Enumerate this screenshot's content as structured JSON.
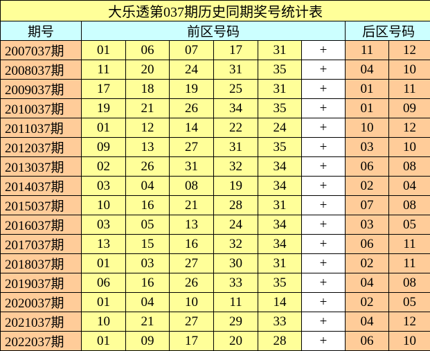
{
  "title": "大乐透第037期历史同期奖号统计表",
  "headers": {
    "period": "期号",
    "front": "前区号码",
    "back": "后区号码"
  },
  "separator": "+",
  "colors": {
    "title_bg": "#FFFF99",
    "header_bg": "#CCFFFF",
    "period_bg": "#FFCC99",
    "front_bg": "#FFFF99",
    "back_bg": "#FFCC99"
  },
  "rows": [
    {
      "period": "2007037期",
      "front": [
        "01",
        "06",
        "07",
        "17",
        "31"
      ],
      "back": [
        "11",
        "12"
      ]
    },
    {
      "period": "2008037期",
      "front": [
        "11",
        "20",
        "24",
        "31",
        "35"
      ],
      "back": [
        "04",
        "10"
      ]
    },
    {
      "period": "2009037期",
      "front": [
        "17",
        "18",
        "19",
        "25",
        "31"
      ],
      "back": [
        "01",
        "11"
      ]
    },
    {
      "period": "2010037期",
      "front": [
        "19",
        "21",
        "26",
        "34",
        "35"
      ],
      "back": [
        "01",
        "09"
      ]
    },
    {
      "period": "2011037期",
      "front": [
        "01",
        "12",
        "14",
        "22",
        "24"
      ],
      "back": [
        "10",
        "12"
      ]
    },
    {
      "period": "2012037期",
      "front": [
        "09",
        "13",
        "27",
        "31",
        "35"
      ],
      "back": [
        "03",
        "10"
      ]
    },
    {
      "period": "2013037期",
      "front": [
        "02",
        "26",
        "31",
        "32",
        "34"
      ],
      "back": [
        "06",
        "08"
      ]
    },
    {
      "period": "2014037期",
      "front": [
        "03",
        "04",
        "08",
        "19",
        "34"
      ],
      "back": [
        "02",
        "04"
      ]
    },
    {
      "period": "2015037期",
      "front": [
        "10",
        "16",
        "21",
        "28",
        "31"
      ],
      "back": [
        "07",
        "08"
      ]
    },
    {
      "period": "2016037期",
      "front": [
        "03",
        "05",
        "13",
        "24",
        "34"
      ],
      "back": [
        "03",
        "05"
      ]
    },
    {
      "period": "2017037期",
      "front": [
        "13",
        "15",
        "16",
        "32",
        "34"
      ],
      "back": [
        "06",
        "11"
      ]
    },
    {
      "period": "2018037期",
      "front": [
        "01",
        "03",
        "27",
        "30",
        "31"
      ],
      "back": [
        "02",
        "11"
      ]
    },
    {
      "period": "2019037期",
      "front": [
        "06",
        "16",
        "26",
        "33",
        "35"
      ],
      "back": [
        "04",
        "08"
      ]
    },
    {
      "period": "2020037期",
      "front": [
        "01",
        "04",
        "10",
        "11",
        "14"
      ],
      "back": [
        "02",
        "05"
      ]
    },
    {
      "period": "2021037期",
      "front": [
        "10",
        "21",
        "27",
        "29",
        "33"
      ],
      "back": [
        "04",
        "12"
      ]
    },
    {
      "period": "2022037期",
      "front": [
        "01",
        "09",
        "17",
        "20",
        "28"
      ],
      "back": [
        "06",
        "10"
      ]
    }
  ]
}
